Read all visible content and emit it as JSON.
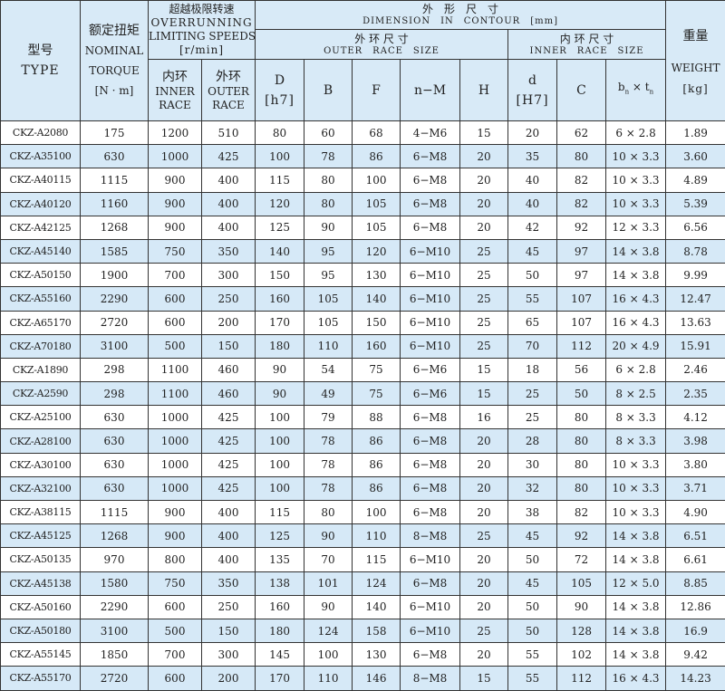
{
  "colors": {
    "header_bg": "#d8eaf7",
    "alt_row_bg": "#d6e9f7",
    "border": "#333333"
  },
  "header": {
    "type_cn": "型号",
    "type_en": "TYPE",
    "torque_cn": "额定扭矩",
    "torque_en1": "NOMINAL",
    "torque_en2": "TORQUE",
    "torque_unit": "[N · m]",
    "speed_cn": "超越极限转速",
    "speed_en1": "OVERRUNNING",
    "speed_en2": "LIMITING SPEEDS",
    "speed_unit": "[r/min]",
    "inner_cn": "内环",
    "inner_en1": "INNER",
    "inner_en2": "RACE",
    "outer_cn": "外环",
    "outer_en1": "OUTER",
    "outer_en2": "RACE",
    "dim_cn": "外　形　尺　寸",
    "dim_en": "DIMENSION　IN　CONTOUR　[mm]",
    "outer_size_cn": "外 环 尺 寸",
    "outer_size_en": "OUTER　RACE　SIZE",
    "inner_size_cn": "内 环 尺 寸",
    "inner_size_en": "INNER　RACE　SIZE",
    "D": "D",
    "D_tol": "[h7]",
    "B": "B",
    "F": "F",
    "nM": "n−M",
    "H": "H",
    "d": "d",
    "d_tol": "[H7]",
    "C": "C",
    "bt": "b",
    "bt_sub": "n",
    "bt_x": " × t",
    "bt_sub2": "n",
    "weight_cn": "重量",
    "weight_en": "WEIGHT",
    "weight_unit": "[kg]"
  },
  "rows": [
    [
      "CKZ-A2080",
      "175",
      "1200",
      "510",
      "80",
      "60",
      "68",
      "4−M6",
      "15",
      "20",
      "62",
      "6 × 2.8",
      "1.89"
    ],
    [
      "CKZ-A35100",
      "630",
      "1000",
      "425",
      "100",
      "78",
      "86",
      "6−M8",
      "20",
      "35",
      "80",
      "10 × 3.3",
      "3.60"
    ],
    [
      "CKZ-A40115",
      "1115",
      "900",
      "400",
      "115",
      "80",
      "100",
      "6−M8",
      "20",
      "40",
      "82",
      "10 × 3.3",
      "4.89"
    ],
    [
      "CKZ-A40120",
      "1160",
      "900",
      "400",
      "120",
      "80",
      "105",
      "6−M8",
      "20",
      "40",
      "82",
      "10 × 3.3",
      "5.39"
    ],
    [
      "CKZ-A42125",
      "1268",
      "900",
      "400",
      "125",
      "90",
      "105",
      "6−M8",
      "20",
      "42",
      "92",
      "12 × 3.3",
      "6.56"
    ],
    [
      "CKZ-A45140",
      "1585",
      "750",
      "350",
      "140",
      "95",
      "120",
      "6−M10",
      "25",
      "45",
      "97",
      "14 × 3.8",
      "8.78"
    ],
    [
      "CKZ-A50150",
      "1900",
      "700",
      "300",
      "150",
      "95",
      "130",
      "6−M10",
      "25",
      "50",
      "97",
      "14 × 3.8",
      "9.99"
    ],
    [
      "CKZ-A55160",
      "2290",
      "600",
      "250",
      "160",
      "105",
      "140",
      "6−M10",
      "25",
      "55",
      "107",
      "16 × 4.3",
      "12.47"
    ],
    [
      "CKZ-A65170",
      "2720",
      "600",
      "200",
      "170",
      "105",
      "150",
      "6−M10",
      "25",
      "65",
      "107",
      "16 × 4.3",
      "13.63"
    ],
    [
      "CKZ-A70180",
      "3100",
      "500",
      "150",
      "180",
      "110",
      "160",
      "6−M10",
      "25",
      "70",
      "112",
      "20 × 4.9",
      "15.91"
    ],
    [
      "CKZ-A1890",
      "298",
      "1100",
      "460",
      "90",
      "54",
      "75",
      "6−M6",
      "15",
      "18",
      "56",
      "6 × 2.8",
      "2.46"
    ],
    [
      "CKZ-A2590",
      "298",
      "1100",
      "460",
      "90",
      "49",
      "75",
      "6−M6",
      "15",
      "25",
      "50",
      "8 × 2.5",
      "2.35"
    ],
    [
      "CKZ-A25100",
      "630",
      "1000",
      "425",
      "100",
      "79",
      "88",
      "6−M8",
      "16",
      "25",
      "80",
      "8 × 3.3",
      "4.12"
    ],
    [
      "CKZ-A28100",
      "630",
      "1000",
      "425",
      "100",
      "78",
      "86",
      "6−M8",
      "20",
      "28",
      "80",
      "8 × 3.3",
      "3.98"
    ],
    [
      "CKZ-A30100",
      "630",
      "1000",
      "425",
      "100",
      "78",
      "86",
      "6−M8",
      "20",
      "30",
      "80",
      "10 × 3.3",
      "3.80"
    ],
    [
      "CKZ-A32100",
      "630",
      "1000",
      "425",
      "100",
      "78",
      "86",
      "6−M8",
      "20",
      "32",
      "80",
      "10 × 3.3",
      "3.71"
    ],
    [
      "CKZ-A38115",
      "1115",
      "900",
      "400",
      "115",
      "80",
      "100",
      "6−M8",
      "20",
      "38",
      "82",
      "10 × 3.3",
      "4.90"
    ],
    [
      "CKZ-A45125",
      "1268",
      "900",
      "400",
      "125",
      "90",
      "110",
      "8−M8",
      "25",
      "45",
      "92",
      "14 × 3.8",
      "6.51"
    ],
    [
      "CKZ-A50135",
      "970",
      "800",
      "400",
      "135",
      "70",
      "115",
      "6−M10",
      "20",
      "50",
      "72",
      "14 × 3.8",
      "6.61"
    ],
    [
      "CKZ-A45138",
      "1580",
      "750",
      "350",
      "138",
      "101",
      "124",
      "6−M8",
      "20",
      "45",
      "105",
      "12 × 5.0",
      "8.85"
    ],
    [
      "CKZ-A50160",
      "2290",
      "600",
      "250",
      "160",
      "90",
      "140",
      "6−M10",
      "20",
      "50",
      "90",
      "14 × 3.8",
      "12.86"
    ],
    [
      "CKZ-A50180",
      "3100",
      "500",
      "150",
      "180",
      "124",
      "158",
      "6−M10",
      "25",
      "50",
      "128",
      "14 × 3.8",
      "16.9"
    ],
    [
      "CKZ-A55145",
      "1850",
      "700",
      "300",
      "145",
      "100",
      "130",
      "6−M8",
      "20",
      "55",
      "102",
      "14 × 3.8",
      "9.42"
    ],
    [
      "CKZ-A55170",
      "2720",
      "600",
      "200",
      "170",
      "110",
      "146",
      "8−M8",
      "15",
      "55",
      "112",
      "16 × 4.3",
      "14.23"
    ]
  ]
}
